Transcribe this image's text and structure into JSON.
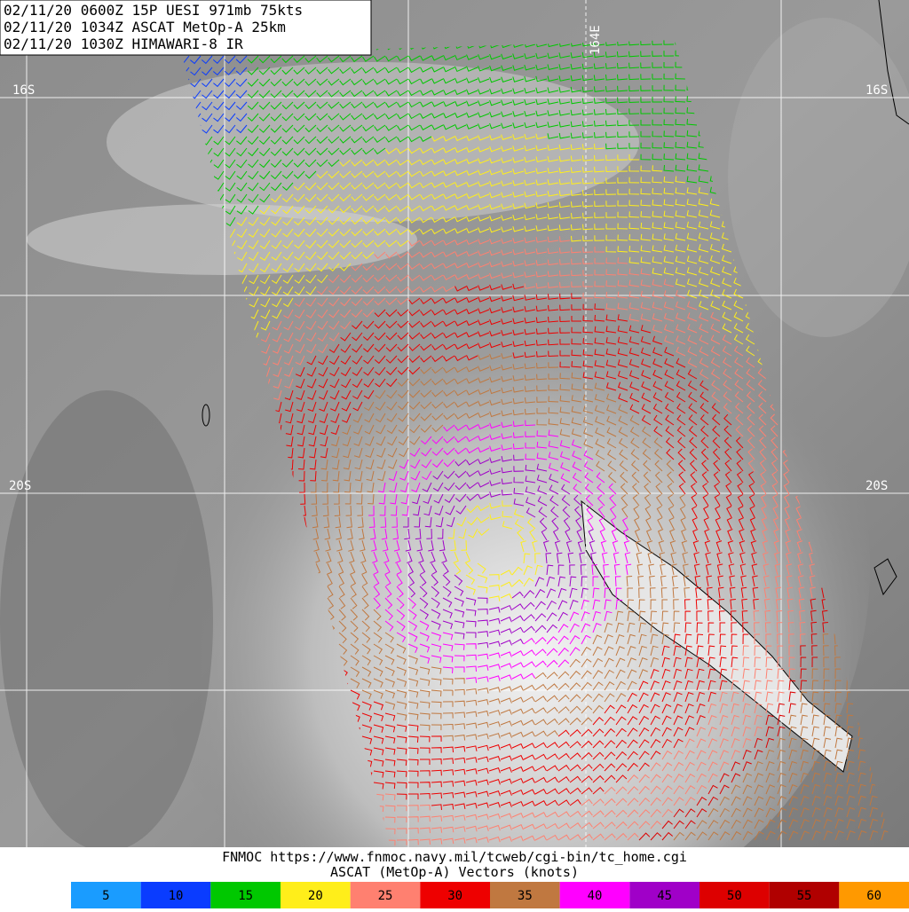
{
  "header": {
    "lines": [
      "02/11/20 0600Z  15P UESI 971mb 75kts",
      "02/11/20 1034Z  ASCAT MetOp-A 25km",
      "02/11/20 1030Z  HIMAWARI-8 IR"
    ]
  },
  "grid_labels": {
    "lon": [
      "164E"
    ],
    "lat_left": [
      "16S",
      "20S"
    ],
    "lat_right": [
      "16S",
      "20S"
    ]
  },
  "footer": {
    "source": "FNMOC https://www.fnmoc.navy.mil/tcweb/cgi-bin/tc_home.cgi",
    "legend_title": "ASCAT (MetOp-A) Vectors (knots)"
  },
  "color_scale": [
    {
      "value": 5,
      "color": "#1a9cff"
    },
    {
      "value": 10,
      "color": "#0a3cff"
    },
    {
      "value": 15,
      "color": "#00c800"
    },
    {
      "value": 20,
      "color": "#ffee1a"
    },
    {
      "value": 25,
      "color": "#ff8070"
    },
    {
      "value": 30,
      "color": "#ee0000"
    },
    {
      "value": 35,
      "color": "#c07840"
    },
    {
      "value": 40,
      "color": "#ff00ff"
    },
    {
      "value": 45,
      "color": "#a000c8"
    },
    {
      "value": 50,
      "color": "#dd0000"
    },
    {
      "value": 55,
      "color": "#b00000"
    },
    {
      "value": 60,
      "color": "#ff9900"
    }
  ]
}
